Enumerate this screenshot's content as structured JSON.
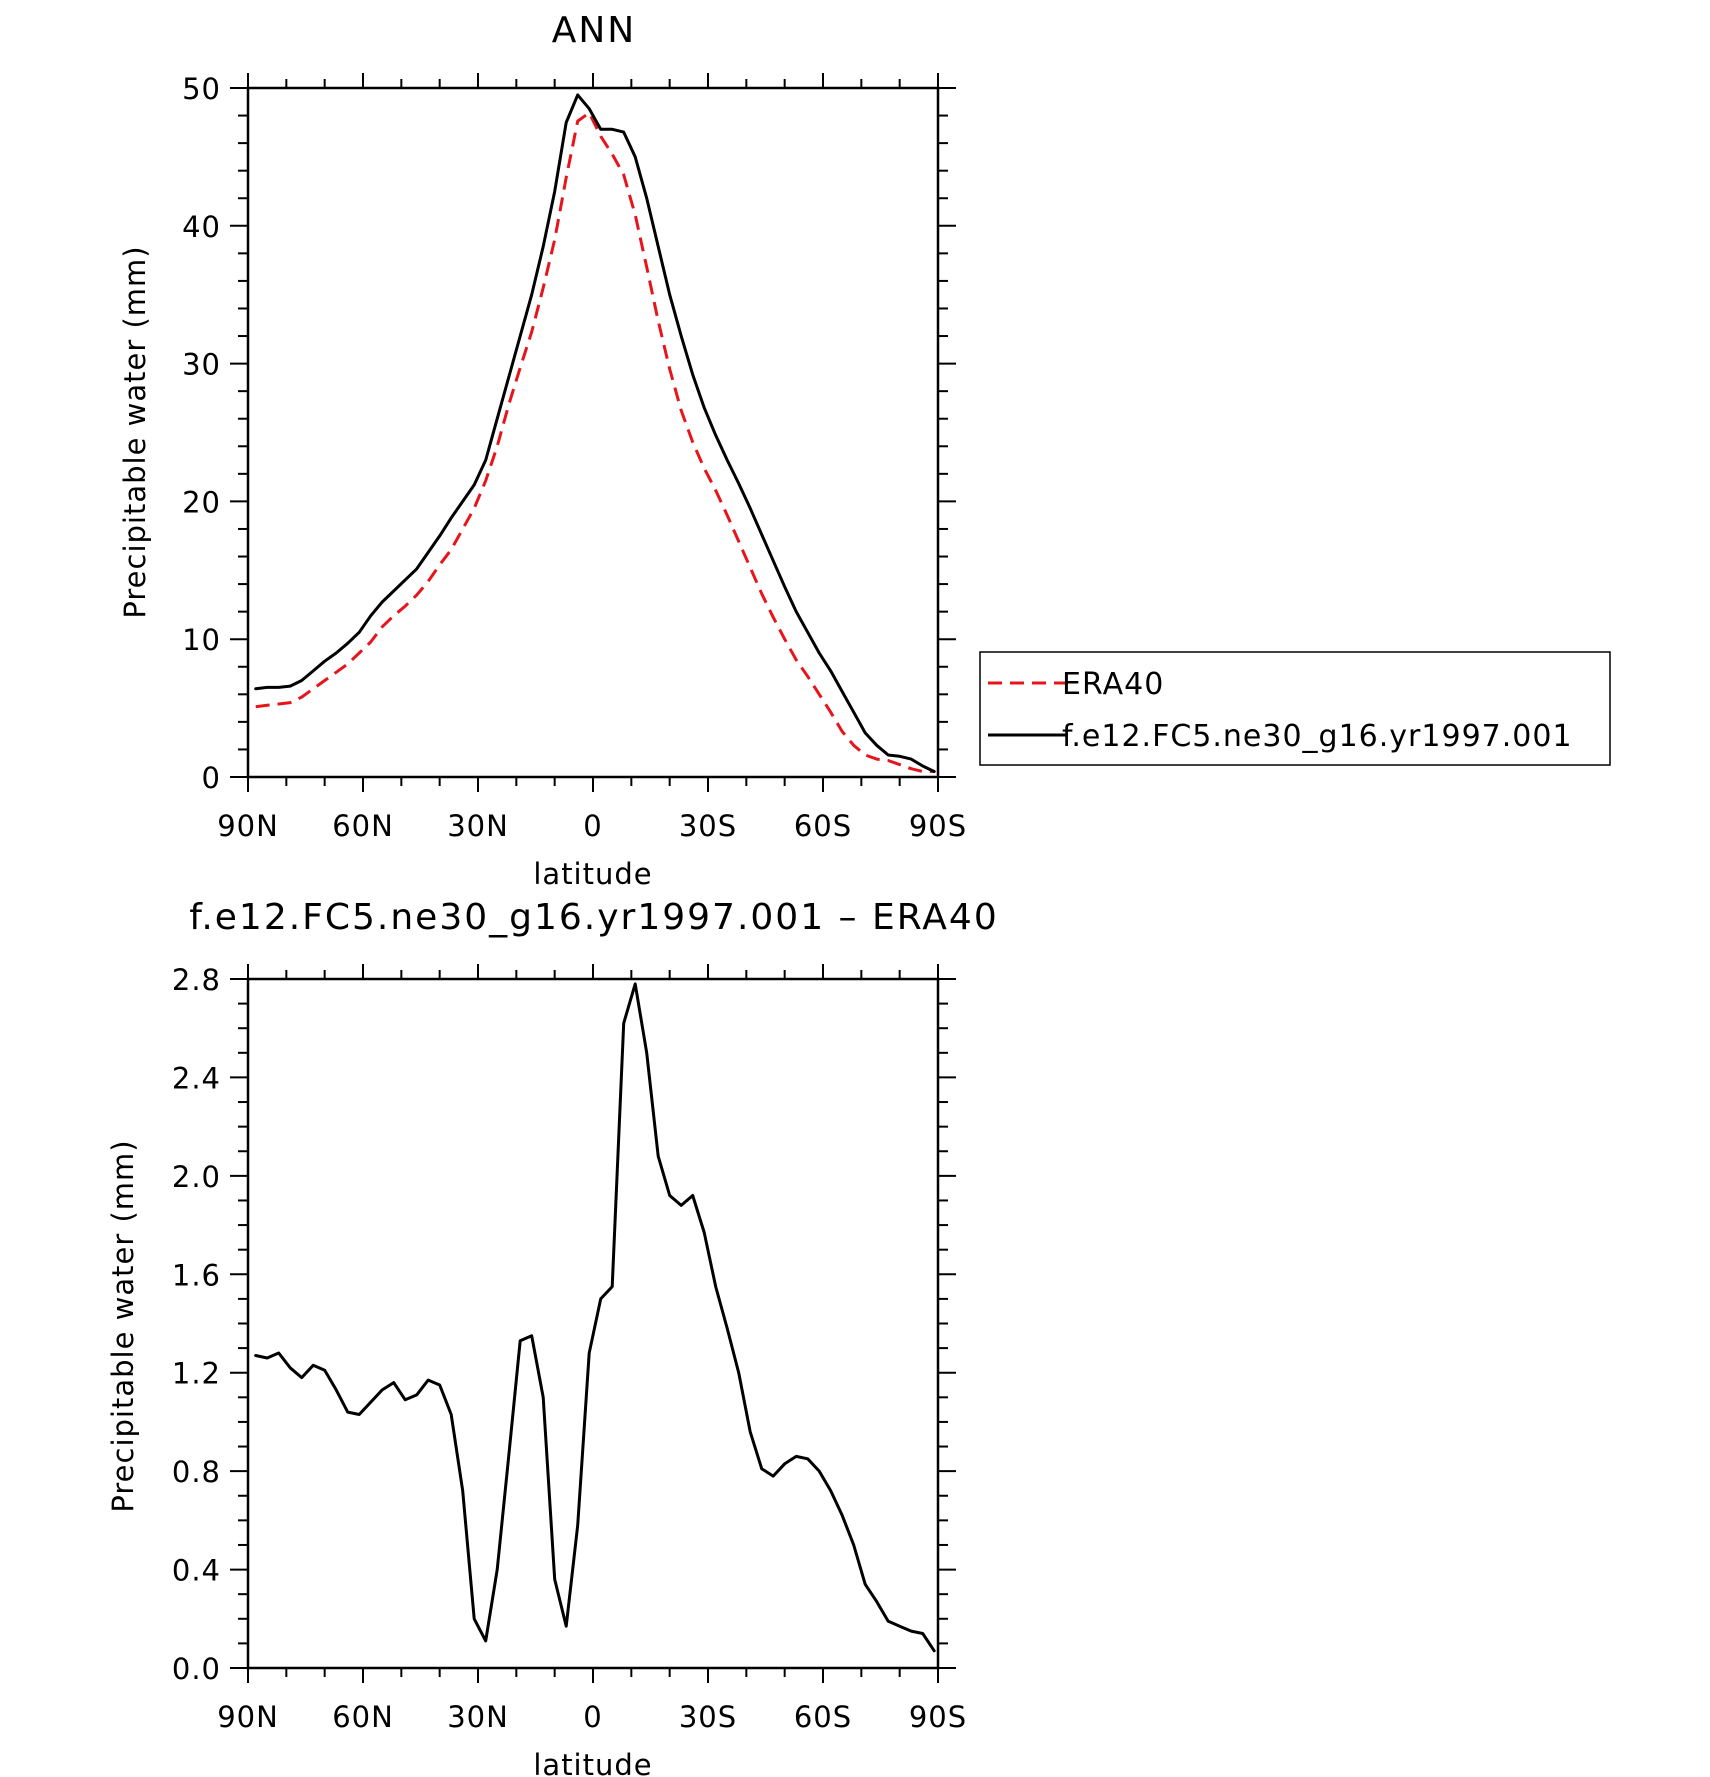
{
  "chart_data": [
    {
      "type": "line",
      "title": "ANN",
      "xlabel": "latitude",
      "ylabel": "Precipitable water (mm)",
      "xlim": [
        90,
        -90
      ],
      "ylim": [
        0,
        50
      ],
      "xticks": [
        {
          "value": 90,
          "label": "90N"
        },
        {
          "value": 60,
          "label": "60N"
        },
        {
          "value": 30,
          "label": "30N"
        },
        {
          "value": 0,
          "label": "0"
        },
        {
          "value": -30,
          "label": "30S"
        },
        {
          "value": -60,
          "label": "60S"
        },
        {
          "value": -90,
          "label": "90S"
        }
      ],
      "yticks": [
        0,
        10,
        20,
        30,
        40,
        50
      ],
      "grid": false,
      "legend": {
        "placement": "right",
        "entries": [
          "ERA40",
          "f.e12.FC5.ne30_g16.yr1997.001"
        ]
      },
      "series": [
        {
          "name": "ERA40",
          "color": "#e8141c",
          "dash": "dashed",
          "x": [
            88,
            85,
            82,
            79,
            76,
            73,
            70,
            67,
            64,
            61,
            58,
            55,
            52,
            49,
            46,
            43,
            40,
            37,
            34,
            31,
            28,
            25,
            22,
            19,
            16,
            13,
            10,
            7,
            4,
            1,
            -2,
            -5,
            -8,
            -11,
            -14,
            -17,
            -20,
            -23,
            -26,
            -29,
            -32,
            -35,
            -38,
            -41,
            -44,
            -47,
            -50,
            -53,
            -56,
            -59,
            -62,
            -65,
            -68,
            -71,
            -74,
            -77,
            -80,
            -83,
            -86,
            -89
          ],
          "values": [
            5.1,
            5.2,
            5.3,
            5.4,
            5.8,
            6.4,
            7.0,
            7.6,
            8.2,
            9.0,
            9.8,
            10.9,
            11.7,
            12.4,
            13.2,
            14.2,
            15.4,
            16.5,
            18.0,
            19.5,
            21.5,
            24.0,
            27.0,
            29.7,
            32.3,
            35.5,
            39.0,
            43.5,
            47.6,
            48.2,
            46.5,
            45.2,
            43.7,
            40.8,
            37.0,
            33.1,
            29.6,
            26.6,
            24.3,
            22.4,
            20.8,
            19.0,
            17.1,
            15.2,
            13.3,
            11.6,
            10.0,
            8.5,
            7.3,
            6.0,
            4.7,
            3.3,
            2.3,
            1.6,
            1.3,
            1.2,
            0.9,
            0.6,
            0.4,
            0.4
          ]
        },
        {
          "name": "f.e12.FC5.ne30_g16.yr1997.001",
          "color": "#000000",
          "dash": "solid",
          "x": [
            88,
            85,
            82,
            79,
            76,
            73,
            70,
            67,
            64,
            61,
            58,
            55,
            52,
            49,
            46,
            43,
            40,
            37,
            34,
            31,
            28,
            25,
            22,
            19,
            16,
            13,
            10,
            7,
            4,
            1,
            -2,
            -5,
            -8,
            -11,
            -14,
            -17,
            -20,
            -23,
            -26,
            -29,
            -32,
            -35,
            -38,
            -41,
            -44,
            -47,
            -50,
            -53,
            -56,
            -59,
            -62,
            -65,
            -68,
            -71,
            -74,
            -77,
            -80,
            -83,
            -86,
            -89
          ],
          "values": [
            6.4,
            6.5,
            6.5,
            6.6,
            7.0,
            7.7,
            8.4,
            9.0,
            9.7,
            10.5,
            11.7,
            12.7,
            13.5,
            14.3,
            15.1,
            16.3,
            17.5,
            18.8,
            20.0,
            21.2,
            23.0,
            26.0,
            29.0,
            32.0,
            35.0,
            38.5,
            42.5,
            47.5,
            49.5,
            48.5,
            47.0,
            47.0,
            46.8,
            45.0,
            42.0,
            38.5,
            35.0,
            32.0,
            29.2,
            26.8,
            24.8,
            23.0,
            21.3,
            19.5,
            17.6,
            15.7,
            13.8,
            12.0,
            10.5,
            9.0,
            7.7,
            6.2,
            4.7,
            3.2,
            2.3,
            1.6,
            1.5,
            1.3,
            0.8,
            0.4
          ]
        }
      ]
    },
    {
      "type": "line",
      "title": "f.e12.FC5.ne30_g16.yr1997.001 – ERA40",
      "xlabel": "latitude",
      "ylabel": "Precipitable water (mm)",
      "xlim": [
        90,
        -90
      ],
      "ylim": [
        0.0,
        2.8
      ],
      "xticks": [
        {
          "value": 90,
          "label": "90N"
        },
        {
          "value": 60,
          "label": "60N"
        },
        {
          "value": 30,
          "label": "30N"
        },
        {
          "value": 0,
          "label": "0"
        },
        {
          "value": -30,
          "label": "30S"
        },
        {
          "value": -60,
          "label": "60S"
        },
        {
          "value": -90,
          "label": "90S"
        }
      ],
      "yticks": [
        "0.0",
        "0.4",
        "0.8",
        "1.2",
        "1.6",
        "2.0",
        "2.4",
        "2.8"
      ],
      "grid": false,
      "series": [
        {
          "color": "#000000",
          "dash": "solid",
          "x": [
            88,
            85,
            82,
            79,
            76,
            73,
            70,
            67,
            64,
            61,
            58,
            55,
            52,
            49,
            46,
            43,
            40,
            37,
            34,
            31,
            28,
            25,
            22,
            19,
            16,
            13,
            10,
            7,
            4,
            1,
            -2,
            -5,
            -8,
            -11,
            -14,
            -17,
            -20,
            -23,
            -26,
            -29,
            -32,
            -35,
            -38,
            -41,
            -44,
            -47,
            -50,
            -53,
            -56,
            -59,
            -62,
            -65,
            -68,
            -71,
            -74,
            -77,
            -80,
            -83,
            -86,
            -89
          ],
          "values": [
            1.27,
            1.26,
            1.28,
            1.22,
            1.18,
            1.23,
            1.21,
            1.13,
            1.04,
            1.03,
            1.08,
            1.13,
            1.16,
            1.09,
            1.11,
            1.17,
            1.15,
            1.03,
            0.72,
            0.2,
            0.11,
            0.4,
            0.86,
            1.33,
            1.35,
            1.1,
            0.36,
            0.17,
            0.58,
            1.28,
            1.5,
            1.55,
            2.62,
            2.78,
            2.5,
            2.08,
            1.92,
            1.88,
            1.92,
            1.77,
            1.55,
            1.38,
            1.2,
            0.96,
            0.81,
            0.78,
            0.83,
            0.86,
            0.85,
            0.8,
            0.72,
            0.62,
            0.5,
            0.34,
            0.27,
            0.19,
            0.17,
            0.15,
            0.14,
            0.07
          ]
        }
      ]
    }
  ]
}
